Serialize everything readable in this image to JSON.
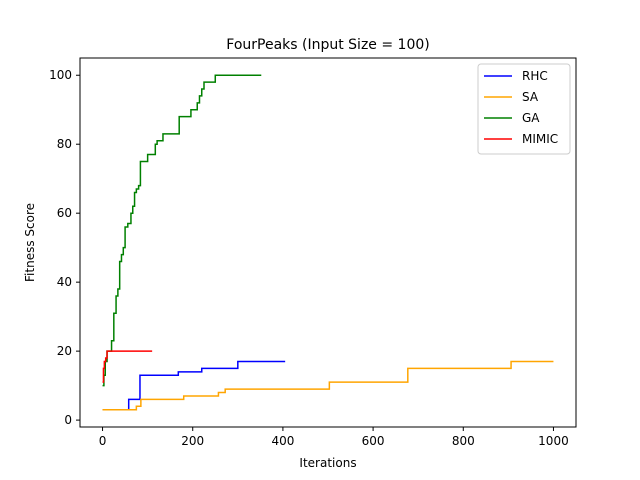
{
  "chart_data": {
    "type": "line",
    "title": "FourPeaks (Input Size = 100)",
    "xlabel": "Iterations",
    "ylabel": "Fitness Score",
    "xlim": [
      -50,
      1050
    ],
    "ylim": [
      -2,
      105
    ],
    "xticks": [
      0,
      200,
      400,
      600,
      800,
      1000
    ],
    "yticks": [
      0,
      20,
      40,
      60,
      80,
      100
    ],
    "grid": false,
    "legend_position": "top-right",
    "series": [
      {
        "name": "RHC",
        "color": "#0000ff",
        "step_points": [
          [
            0,
            3
          ],
          [
            58,
            3
          ],
          [
            58,
            6
          ],
          [
            83,
            6
          ],
          [
            83,
            13
          ],
          [
            168,
            13
          ],
          [
            168,
            14
          ],
          [
            220,
            14
          ],
          [
            220,
            15
          ],
          [
            300,
            15
          ],
          [
            300,
            17
          ],
          [
            405,
            17
          ]
        ]
      },
      {
        "name": "SA",
        "color": "#ffa500",
        "step_points": [
          [
            0,
            3
          ],
          [
            75,
            3
          ],
          [
            75,
            4
          ],
          [
            85,
            4
          ],
          [
            85,
            6
          ],
          [
            180,
            6
          ],
          [
            180,
            7
          ],
          [
            257,
            7
          ],
          [
            257,
            8
          ],
          [
            272,
            8
          ],
          [
            272,
            9
          ],
          [
            503,
            9
          ],
          [
            503,
            11
          ],
          [
            677,
            11
          ],
          [
            677,
            15
          ],
          [
            906,
            15
          ],
          [
            906,
            17
          ],
          [
            1000,
            17
          ]
        ]
      },
      {
        "name": "GA",
        "color": "#008000",
        "step_points": [
          [
            0,
            10
          ],
          [
            3,
            10
          ],
          [
            3,
            13
          ],
          [
            6,
            13
          ],
          [
            6,
            17
          ],
          [
            10,
            17
          ],
          [
            10,
            20
          ],
          [
            20,
            20
          ],
          [
            20,
            23
          ],
          [
            25,
            23
          ],
          [
            25,
            31
          ],
          [
            30,
            31
          ],
          [
            30,
            36
          ],
          [
            34,
            36
          ],
          [
            34,
            38
          ],
          [
            38,
            38
          ],
          [
            38,
            46
          ],
          [
            42,
            46
          ],
          [
            42,
            48
          ],
          [
            46,
            48
          ],
          [
            46,
            50
          ],
          [
            50,
            50
          ],
          [
            50,
            56
          ],
          [
            56,
            56
          ],
          [
            56,
            57
          ],
          [
            63,
            57
          ],
          [
            63,
            60
          ],
          [
            67,
            60
          ],
          [
            67,
            62
          ],
          [
            71,
            62
          ],
          [
            71,
            66
          ],
          [
            75,
            66
          ],
          [
            75,
            67
          ],
          [
            80,
            67
          ],
          [
            80,
            68
          ],
          [
            84,
            68
          ],
          [
            84,
            75
          ],
          [
            100,
            75
          ],
          [
            100,
            77
          ],
          [
            117,
            77
          ],
          [
            117,
            80
          ],
          [
            121,
            80
          ],
          [
            121,
            81
          ],
          [
            134,
            81
          ],
          [
            134,
            83
          ],
          [
            170,
            83
          ],
          [
            170,
            88
          ],
          [
            196,
            88
          ],
          [
            196,
            90
          ],
          [
            210,
            90
          ],
          [
            210,
            92
          ],
          [
            215,
            92
          ],
          [
            215,
            94
          ],
          [
            220,
            94
          ],
          [
            220,
            96
          ],
          [
            225,
            96
          ],
          [
            225,
            98
          ],
          [
            250,
            98
          ],
          [
            250,
            100
          ],
          [
            352,
            100
          ]
        ]
      },
      {
        "name": "MIMIC",
        "color": "#ff0000",
        "step_points": [
          [
            0,
            11
          ],
          [
            2,
            11
          ],
          [
            2,
            15
          ],
          [
            4,
            15
          ],
          [
            4,
            17
          ],
          [
            7,
            17
          ],
          [
            7,
            18
          ],
          [
            10,
            18
          ],
          [
            10,
            20
          ],
          [
            110,
            20
          ]
        ]
      }
    ]
  }
}
